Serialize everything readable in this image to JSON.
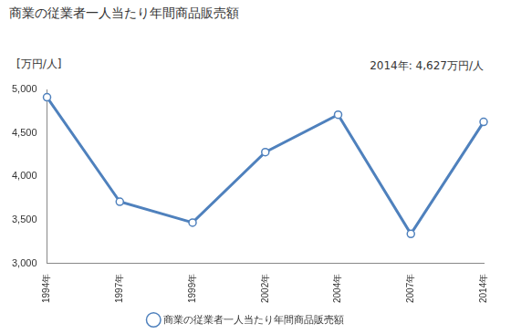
{
  "chart_data": {
    "type": "line",
    "title": "商業の従業者一人当たり年間商品販売額",
    "y_label": "[万円/人]",
    "annotation": "2014年: 4,627万円/人",
    "categories": [
      "1994年",
      "1997年",
      "1999年",
      "2002年",
      "2004年",
      "2007年",
      "2014年"
    ],
    "series": [
      {
        "name": "商業の従業者一人当たり年間商品販売額",
        "color": "#4f81bd",
        "marker": "circle",
        "values": [
          4910,
          3710,
          3470,
          4280,
          4710,
          3340,
          4627
        ]
      }
    ],
    "ylim": [
      3000,
      5000
    ],
    "yticks": [
      {
        "value": 3000,
        "label": "3,000"
      },
      {
        "value": 3500,
        "label": "3,500"
      },
      {
        "value": 4000,
        "label": "4,000"
      },
      {
        "value": 4500,
        "label": "4,500"
      },
      {
        "value": 5000,
        "label": "5,000"
      }
    ],
    "grid": false,
    "legend": "bottom"
  }
}
